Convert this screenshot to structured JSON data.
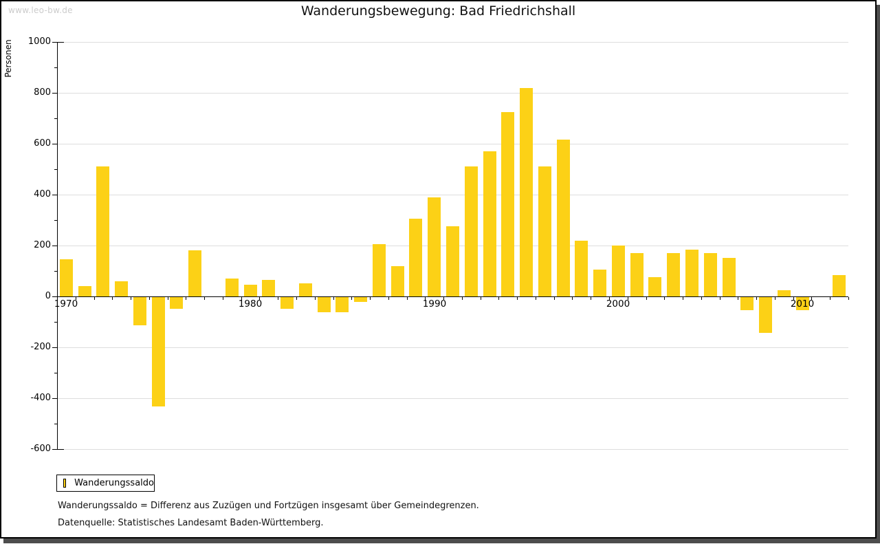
{
  "watermark": "www.leo-bw.de",
  "header": {
    "title": "Wanderungsbewegung: Bad Friedrichshall"
  },
  "legend": {
    "label": "Wanderungssaldo"
  },
  "footnotes": {
    "definition": "Wanderungssaldo = Differenz aus Zuzügen und Fortzügen insgesamt über Gemeindegrenzen.",
    "source": "Datenquelle: Statistisches Landesamt Baden-Württemberg."
  },
  "colors": {
    "bar": "#fcd116",
    "grid": "#dddddd",
    "axis": "#000000",
    "watermark": "#cccccc",
    "shadow": "#4d4d4d"
  },
  "chart_data": {
    "type": "bar",
    "title": "Wanderungsbewegung: Bad Friedrichshall",
    "xlabel": "",
    "ylabel": "Personen",
    "ylim": [
      -600,
      1000
    ],
    "ytick_interval": 200,
    "yminor_interval": 100,
    "grid": true,
    "legend_position": "bottom-left",
    "series_name": "Wanderungssaldo",
    "bar_color": "#fcd116",
    "categories": [
      1970,
      1971,
      1972,
      1973,
      1974,
      1975,
      1976,
      1977,
      1978,
      1979,
      1980,
      1981,
      1982,
      1983,
      1984,
      1985,
      1986,
      1987,
      1988,
      1989,
      1990,
      1991,
      1992,
      1993,
      1994,
      1995,
      1996,
      1997,
      1998,
      1999,
      2000,
      2001,
      2002,
      2003,
      2004,
      2005,
      2006,
      2007,
      2008,
      2009,
      2010,
      2011,
      2012
    ],
    "values": [
      145,
      40,
      510,
      60,
      -110,
      -430,
      -45,
      180,
      0,
      70,
      45,
      65,
      -45,
      50,
      -60,
      -60,
      -20,
      205,
      120,
      305,
      390,
      275,
      510,
      570,
      725,
      820,
      510,
      615,
      220,
      105,
      200,
      170,
      75,
      170,
      185,
      170,
      150,
      -50,
      -140,
      25,
      -50,
      0,
      85
    ],
    "labeled_xticks": [
      1970,
      1980,
      1990,
      2000,
      2010
    ]
  }
}
